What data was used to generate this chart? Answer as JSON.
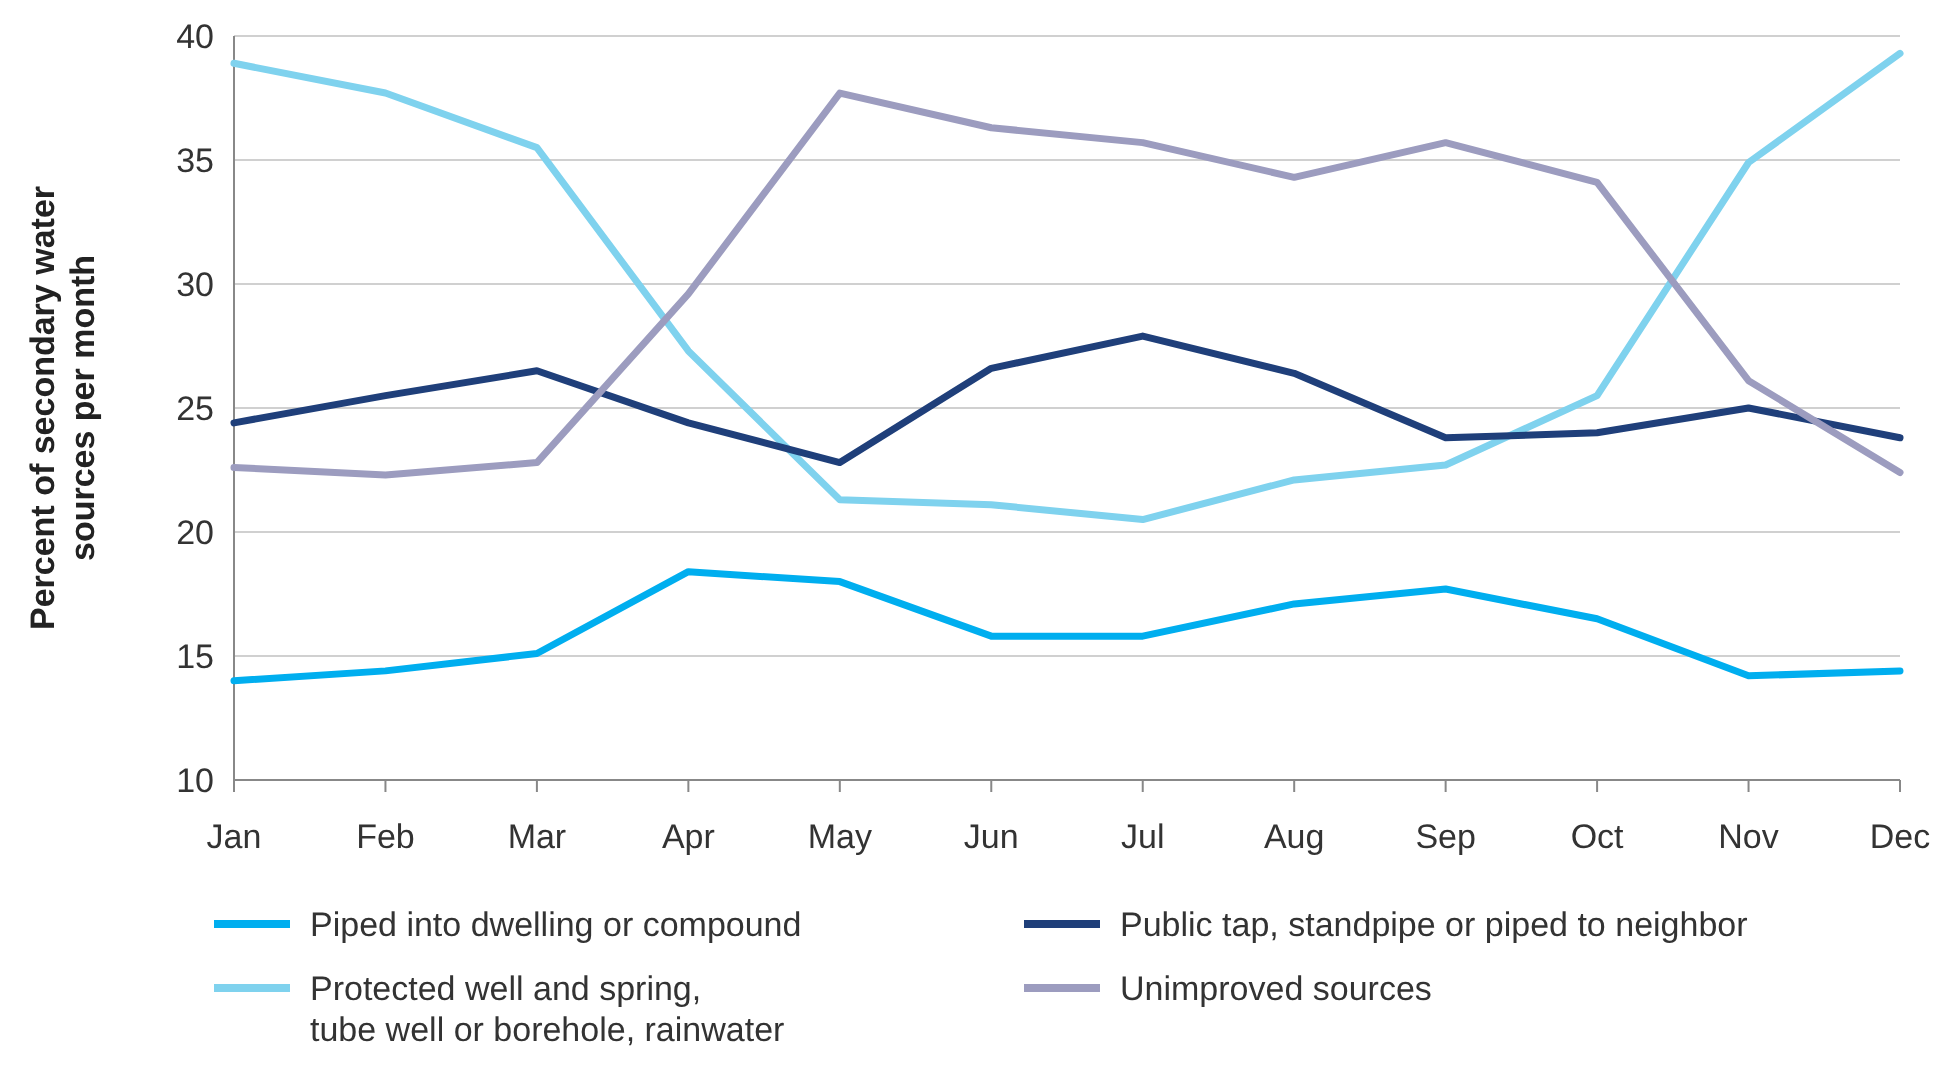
{
  "chart_data": {
    "type": "line",
    "ylabel": "Percent of secondary water sources per month",
    "categories": [
      "Jan",
      "Feb",
      "Mar",
      "Apr",
      "May",
      "Jun",
      "Jul",
      "Aug",
      "Sep",
      "Oct",
      "Nov",
      "Dec"
    ],
    "series": [
      {
        "name": "Piped into dwelling or compound",
        "color": "#00aeef",
        "values": [
          14.0,
          14.4,
          15.1,
          18.4,
          18.0,
          15.8,
          15.8,
          17.1,
          17.7,
          16.5,
          14.2,
          14.4
        ]
      },
      {
        "name": "Protected well and spring, tube well or borehole, rainwater",
        "color": "#7fd2ee",
        "values": [
          38.9,
          37.7,
          35.5,
          27.3,
          21.3,
          21.1,
          20.5,
          22.1,
          22.7,
          25.5,
          34.9,
          39.3
        ]
      },
      {
        "name": "Public tap, standpipe or piped to neighbor",
        "color": "#1f3f7a",
        "values": [
          24.4,
          25.5,
          26.5,
          24.4,
          22.8,
          26.6,
          27.9,
          26.4,
          23.8,
          24.0,
          25.0,
          23.8
        ]
      },
      {
        "name": "Unimproved sources",
        "color": "#9c9cbf",
        "values": [
          22.6,
          22.3,
          22.8,
          29.6,
          37.7,
          36.3,
          35.7,
          34.3,
          35.7,
          34.1,
          26.1,
          22.4
        ]
      }
    ],
    "ylim": [
      10,
      40
    ],
    "yticks": [
      10,
      15,
      20,
      25,
      30,
      35,
      40
    ],
    "grid": "y",
    "legend": "bottom",
    "marker": "none",
    "line_style": "solid"
  }
}
